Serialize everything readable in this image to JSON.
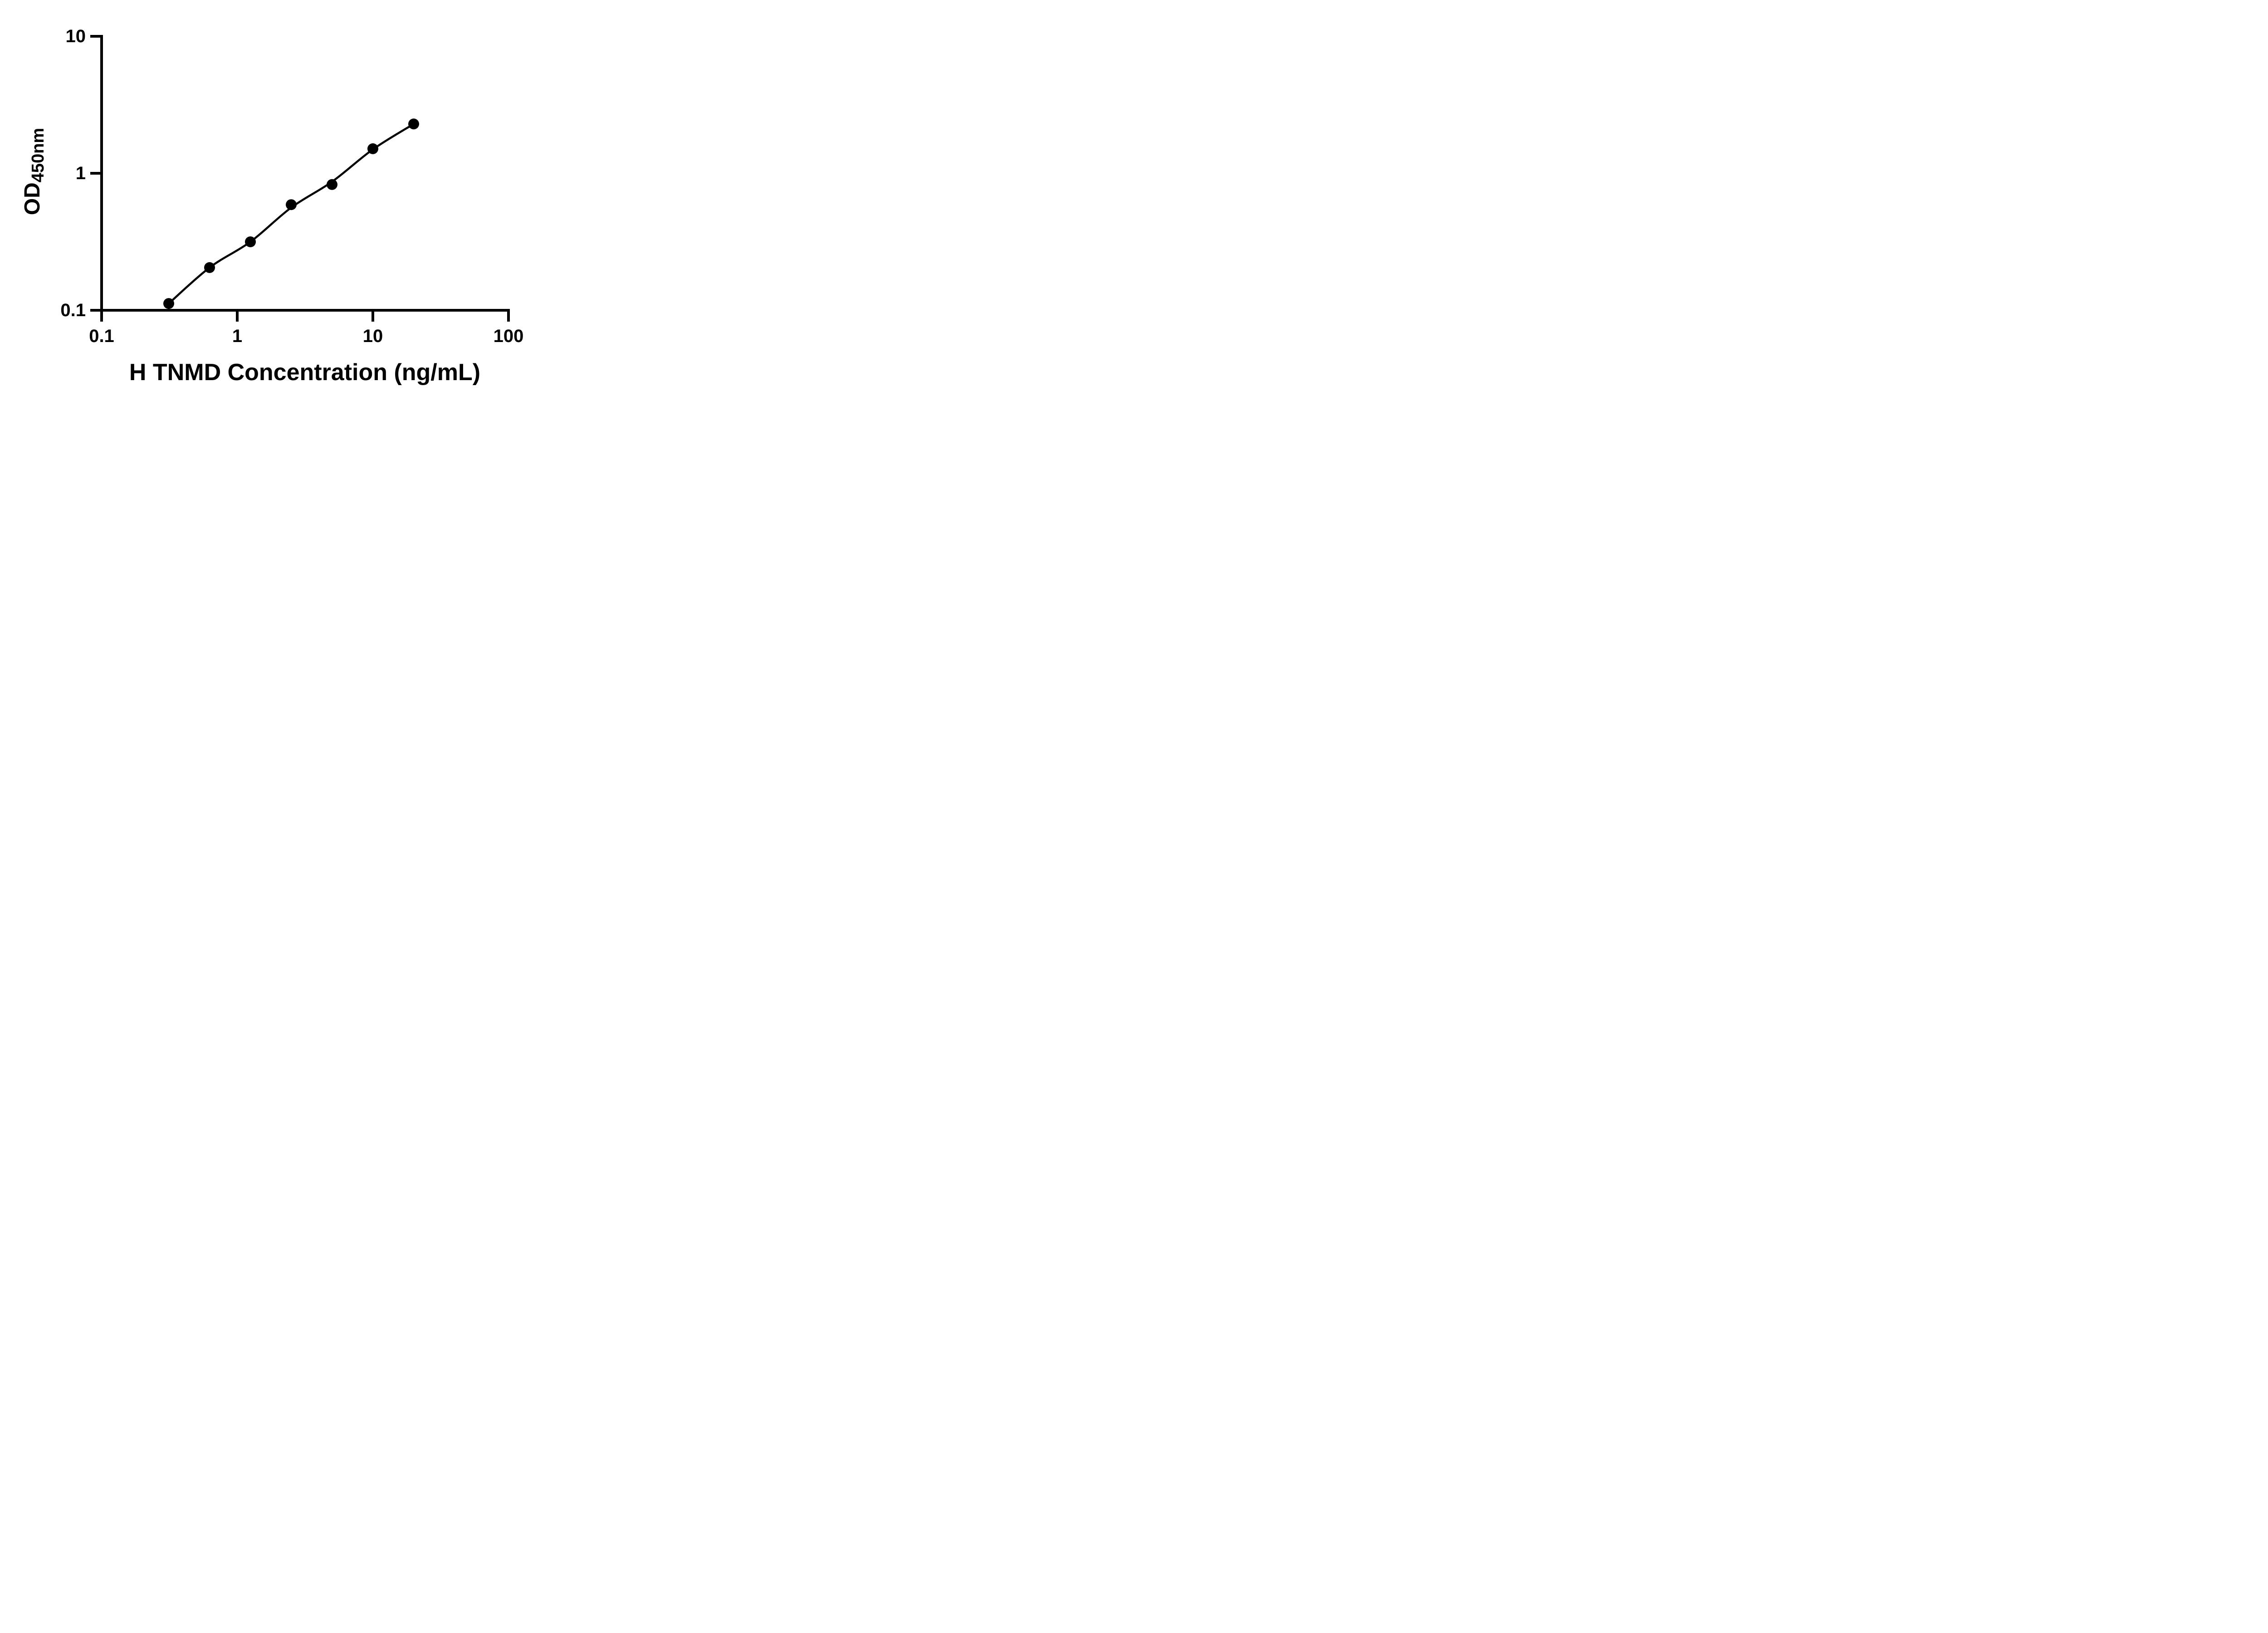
{
  "chart_data": {
    "type": "scatter",
    "title": "",
    "xlabel": "H TNMD Concentration (ng/mL)",
    "ylabel_main": "OD",
    "ylabel_subscript": "450nm",
    "x_scale": "log",
    "y_scale": "log",
    "xlim": [
      0.1,
      100
    ],
    "ylim": [
      0.1,
      10
    ],
    "x_ticks": [
      0.1,
      1,
      10,
      100
    ],
    "x_tick_labels": [
      "0.1",
      "1",
      "10",
      "100"
    ],
    "y_ticks": [
      0.1,
      1,
      10
    ],
    "y_tick_labels": [
      "0.1",
      "1",
      "10"
    ],
    "grid": false,
    "legend": "none",
    "series": [
      {
        "name": "standard-points",
        "type": "scatter",
        "x": [
          0.3125,
          0.625,
          1.25,
          2.5,
          5,
          10,
          20
        ],
        "y": [
          0.112,
          0.205,
          0.316,
          0.59,
          0.828,
          1.51,
          2.29
        ]
      },
      {
        "name": "fit-line",
        "type": "line",
        "x": [
          0.3125,
          0.625,
          1.25,
          2.5,
          5,
          10,
          20
        ],
        "y": [
          0.112,
          0.205,
          0.316,
          0.562,
          0.868,
          1.495,
          2.29
        ]
      }
    ],
    "colors": {
      "marker": "#000000",
      "line": "#000000",
      "axis": "#000000",
      "text": "#000000",
      "background": "#ffffff"
    }
  }
}
